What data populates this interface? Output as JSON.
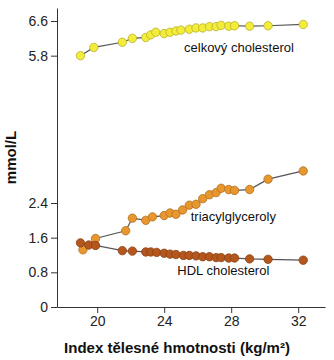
{
  "chart_data": {
    "type": "line",
    "x_label": "Index tělesné hmotnosti (kg/m²)",
    "y_label": "mmol/L",
    "xlim": [
      17.6,
      33.6
    ],
    "xticks": [
      20,
      24,
      28,
      32
    ],
    "ylim": [
      0,
      6.9
    ],
    "yticks": [
      0,
      0.8,
      1.6,
      2.4,
      5.8,
      6.6
    ],
    "grid": false,
    "marker": "circle",
    "line_style": "solid",
    "series": [
      {
        "name": "celkový cholesterol",
        "color": "#f3ec3a",
        "x": [
          19.0,
          19.8,
          21.5,
          22.1,
          22.9,
          23.2,
          23.5,
          24.0,
          24.35,
          24.7,
          25.0,
          25.5,
          25.9,
          26.3,
          26.7,
          27.1,
          27.4,
          27.85,
          28.2,
          29.1,
          30.2,
          32.3
        ],
        "values": [
          5.8,
          5.99,
          6.11,
          6.2,
          6.22,
          6.28,
          6.34,
          6.31,
          6.34,
          6.37,
          6.39,
          6.41,
          6.44,
          6.44,
          6.47,
          6.47,
          6.5,
          6.48,
          6.49,
          6.48,
          6.49,
          6.52
        ]
      },
      {
        "name": "triacylglyceroly",
        "color": "#e8962e",
        "x": [
          19.15,
          19.9,
          21.7,
          22.1,
          22.9,
          23.3,
          24.0,
          24.35,
          24.7,
          25.1,
          25.5,
          25.9,
          26.3,
          26.7,
          27.1,
          27.4,
          27.85,
          28.2,
          29.1,
          30.2,
          32.3
        ],
        "values": [
          1.32,
          1.58,
          1.76,
          2.05,
          2.0,
          2.08,
          2.11,
          2.17,
          2.14,
          2.24,
          2.35,
          2.37,
          2.5,
          2.59,
          2.64,
          2.74,
          2.71,
          2.69,
          2.71,
          2.95,
          3.14
        ]
      },
      {
        "name": "HDL cholesterol",
        "color": "#b5561d",
        "x": [
          19.0,
          19.5,
          19.9,
          21.5,
          22.1,
          22.9,
          23.2,
          23.55,
          24.0,
          24.35,
          24.7,
          25.15,
          25.5,
          25.9,
          26.3,
          26.7,
          27.1,
          27.4,
          27.85,
          28.2,
          29.1,
          30.2,
          32.3
        ],
        "values": [
          1.48,
          1.43,
          1.42,
          1.3,
          1.29,
          1.27,
          1.27,
          1.26,
          1.24,
          1.22,
          1.21,
          1.19,
          1.19,
          1.18,
          1.16,
          1.16,
          1.14,
          1.14,
          1.13,
          1.13,
          1.11,
          1.1,
          1.08
        ]
      }
    ]
  }
}
